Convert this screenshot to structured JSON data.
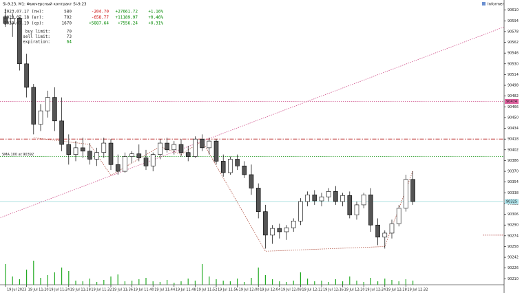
{
  "chart_data": {
    "type": "candlestick",
    "title": "Si-9.23, M1: Фьючерсный контракт Si-9.23",
    "informer": "Informer",
    "ylim": [
      90195,
      90625
    ],
    "yticks": [
      90210,
      90226,
      90242,
      90258,
      90274,
      90290,
      90306,
      90322,
      90338,
      90354,
      90370,
      90386,
      90402,
      90418,
      90434,
      90450,
      90466,
      90482,
      90498,
      90514,
      90530,
      90546,
      90562,
      90578,
      90594,
      90610
    ],
    "xticks": [
      {
        "value": 0,
        "label": "19 Jul 2023"
      },
      {
        "value": 3,
        "label": "19 Jul 11:20"
      },
      {
        "value": 6,
        "label": "19 Jul 11:24"
      },
      {
        "value": 9,
        "label": "19 Jul 11:28"
      },
      {
        "value": 12,
        "label": "19 Jul 11:32"
      },
      {
        "value": 15,
        "label": "19 Jul 11:36"
      },
      {
        "value": 18,
        "label": "19 Jul 11:40"
      },
      {
        "value": 21,
        "label": "19 Jul 11:44"
      },
      {
        "value": 24,
        "label": "19 Jul 11:48"
      },
      {
        "value": 27,
        "label": "19 Jul 11:52"
      },
      {
        "value": 30,
        "label": "19 Jul 11:56"
      },
      {
        "value": 33,
        "label": "19 Jul 12:00"
      },
      {
        "value": 36,
        "label": "19 Jul 12:04"
      },
      {
        "value": 39,
        "label": "19 Jul 12:08"
      },
      {
        "value": 42,
        "label": "19 Jul 12:12"
      },
      {
        "value": 45,
        "label": "19 Jul 12:16"
      },
      {
        "value": 48,
        "label": "19 Jul 12:20"
      },
      {
        "value": 51,
        "label": "19 Jul 12:24"
      },
      {
        "value": 54,
        "label": "19 Jul 12:28"
      },
      {
        "value": 57,
        "label": "19 Jul 12:32"
      }
    ],
    "open": [
      90600,
      90590,
      90598,
      90530,
      90495,
      90440,
      90460,
      90480,
      90445,
      90410,
      90395,
      90405,
      90400,
      90388,
      90398,
      90412,
      90380,
      90370,
      90392,
      90396,
      90390,
      90378,
      90395,
      90412,
      90402,
      90410,
      90398,
      90392,
      90418,
      90405,
      90415,
      90385,
      90368,
      90388,
      90378,
      90365,
      90345,
      90310,
      90275,
      90285,
      90280,
      90286,
      90296,
      90325,
      90335,
      90326,
      90332,
      90340,
      90325,
      90334,
      90305,
      90320,
      90335,
      90290,
      90272,
      90278,
      90292,
      90315,
      90358
    ],
    "high": [
      90612,
      90605,
      90600,
      90545,
      90500,
      90470,
      90490,
      90495,
      90480,
      90425,
      90415,
      90420,
      90412,
      90405,
      90420,
      90418,
      90395,
      90398,
      90400,
      90410,
      90402,
      90398,
      90418,
      90420,
      90415,
      90418,
      90408,
      90422,
      90425,
      90420,
      90418,
      90395,
      90392,
      90395,
      90385,
      90380,
      90352,
      90320,
      90290,
      90292,
      90290,
      90300,
      90330,
      90340,
      90342,
      90338,
      90345,
      90348,
      90338,
      90340,
      90325,
      90338,
      90345,
      90300,
      90282,
      90298,
      90320,
      90365,
      90370
    ],
    "low": [
      90585,
      90570,
      90520,
      90480,
      90425,
      90430,
      90450,
      90430,
      90400,
      90380,
      90385,
      90390,
      90380,
      90378,
      90390,
      90372,
      90365,
      90368,
      90382,
      90385,
      90372,
      90370,
      90388,
      90398,
      90395,
      90392,
      90385,
      90390,
      90400,
      90395,
      90380,
      90362,
      90365,
      90372,
      90360,
      90335,
      90300,
      90255,
      90262,
      90270,
      90268,
      90280,
      90290,
      90318,
      90320,
      90318,
      90325,
      90320,
      90318,
      90300,
      90298,
      90315,
      90280,
      90260,
      90255,
      90270,
      90288,
      90310,
      90320
    ],
    "close": [
      90590,
      90598,
      90530,
      90495,
      90440,
      90460,
      90480,
      90445,
      90410,
      90395,
      90405,
      90400,
      90388,
      90398,
      90412,
      90380,
      90370,
      90392,
      90396,
      90390,
      90378,
      90395,
      90412,
      90402,
      90410,
      90398,
      90392,
      90418,
      90405,
      90415,
      90385,
      90368,
      90388,
      90378,
      90365,
      90345,
      90310,
      90275,
      90285,
      90280,
      90286,
      90296,
      90325,
      90335,
      90326,
      90332,
      90340,
      90325,
      90334,
      90305,
      90320,
      90335,
      90290,
      90272,
      90278,
      90292,
      90315,
      90358,
      90325
    ],
    "volume": [
      30,
      12,
      8,
      22,
      35,
      10,
      14,
      18,
      25,
      20,
      6,
      5,
      9,
      4,
      7,
      12,
      15,
      5,
      6,
      8,
      10,
      5,
      4,
      7,
      3,
      5,
      9,
      6,
      30,
      12,
      8,
      6,
      5,
      9,
      4,
      10,
      25,
      14,
      8,
      5,
      4,
      6,
      18,
      9,
      5,
      6,
      4,
      8,
      5,
      12,
      6,
      4,
      10,
      5,
      9,
      7,
      5,
      8,
      6
    ],
    "volume_ylim": [
      0,
      50
    ],
    "levels": [
      {
        "value": 90474,
        "color": "#d0508a",
        "style": "dotted",
        "axis_label_bg": "#e060a0"
      },
      {
        "value": 90418,
        "color": "#b82020",
        "style": "dashdot"
      },
      {
        "value": 90392,
        "color": "#30a030",
        "style": "dotted",
        "label": "SMA 100 at 90392"
      },
      {
        "value": 90325,
        "color": "#90d8d8",
        "style": "solid",
        "axis_label_bg": "#a8e0e8"
      },
      {
        "value": 90275,
        "color": "#a01818",
        "style": "dotted",
        "start": 68
      }
    ],
    "trend": {
      "x": [
        -1,
        71
      ],
      "values": [
        90300,
        90585
      ],
      "color": "#d0508a"
    },
    "zigzag": {
      "x": [
        4,
        12,
        15,
        22,
        25,
        28,
        37,
        54,
        58
      ],
      "values": [
        90420,
        90410,
        90364,
        90407,
        90395,
        90415,
        90251,
        90258,
        90371
      ],
      "color": "#b05040"
    },
    "stats": {
      "rows": [
        [
          "2023.07.17 (пн):",
          "580",
          "-204.70",
          "+27661.72",
          "+1.16%"
        ],
        [
          "2023.07.18 (вт):",
          "792",
          "-658.77",
          "+11189.97",
          "+0.46%"
        ],
        [
          "2023.07.19 (ср):",
          "1670",
          "+5887.64",
          "+7556.24",
          "+0.31%"
        ]
      ],
      "limits": [
        [
          "buy limit:",
          "70"
        ],
        [
          "sell limit:",
          "73"
        ],
        [
          "expiration:",
          "64"
        ]
      ]
    }
  }
}
